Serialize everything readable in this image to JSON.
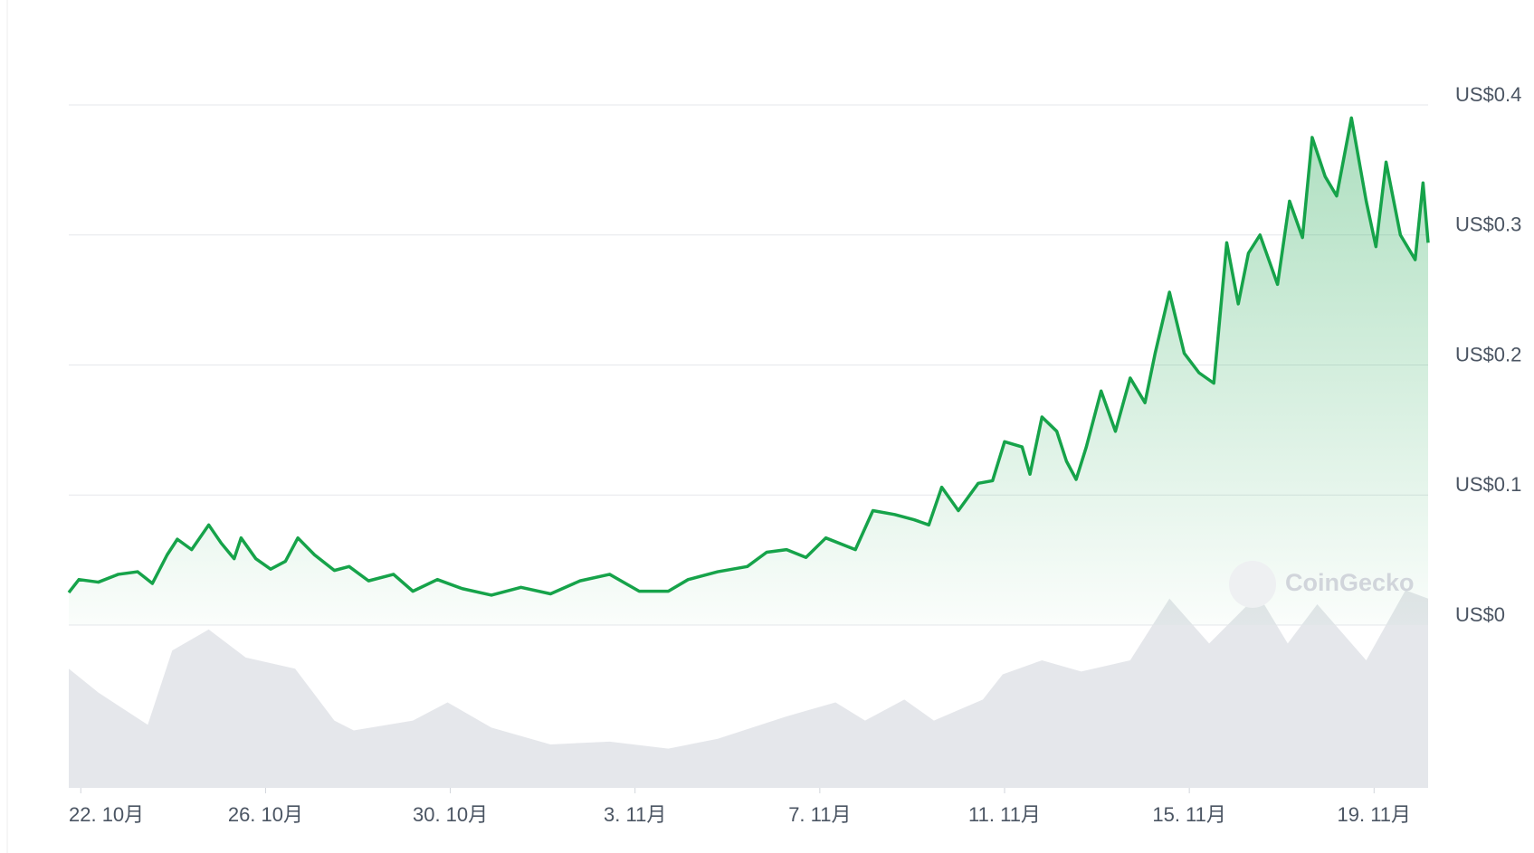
{
  "chart_data": {
    "type": "line",
    "watermark": "CoinGecko",
    "xlim": [
      21.74,
      51.17
    ],
    "xticks": [
      {
        "value": 22,
        "label": "22. 10月"
      },
      {
        "value": 26,
        "label": "26. 10月"
      },
      {
        "value": 30,
        "label": "30. 10月"
      },
      {
        "value": 34,
        "label": "3. 11月"
      },
      {
        "value": 38,
        "label": "7. 11月"
      },
      {
        "value": 42,
        "label": "11. 11月"
      },
      {
        "value": 46,
        "label": "15. 11月"
      },
      {
        "value": 50,
        "label": "19. 11月"
      }
    ],
    "ylim": [
      0,
      0.4
    ],
    "yticks": [
      {
        "value": 0,
        "label": "US$0"
      },
      {
        "value": 0.1,
        "label": "US$0.1"
      },
      {
        "value": 0.2,
        "label": "US$0.2"
      },
      {
        "value": 0.3,
        "label": "US$0.3"
      },
      {
        "value": 0.4,
        "label": "US$0.4"
      }
    ],
    "grid": true,
    "x": [
      21.74,
      21.96,
      22.38,
      22.81,
      23.23,
      23.55,
      23.87,
      24.09,
      24.4,
      24.77,
      25.04,
      25.32,
      25.47,
      25.79,
      26.11,
      26.43,
      26.7,
      27.06,
      27.49,
      27.81,
      28.23,
      28.77,
      29.19,
      29.72,
      30.26,
      30.89,
      31.53,
      32.17,
      32.81,
      33.45,
      34.09,
      34.72,
      35.15,
      35.79,
      36.43,
      36.85,
      37.28,
      37.7,
      38.13,
      38.77,
      39.15,
      39.62,
      40.04,
      40.36,
      40.64,
      41.0,
      41.43,
      41.74,
      42.0,
      42.38,
      42.55,
      42.81,
      43.13,
      43.34,
      43.55,
      43.77,
      44.09,
      44.4,
      44.72,
      45.04,
      45.26,
      45.57,
      45.89,
      46.21,
      46.53,
      46.81,
      47.06,
      47.28,
      47.53,
      47.91,
      48.17,
      48.45,
      48.66,
      48.94,
      49.19,
      49.51,
      49.83,
      50.04,
      50.26,
      50.57,
      50.89,
      51.06,
      51.17
    ],
    "series": [
      {
        "color": "#16a34a",
        "values": [
          0.025,
          0.035,
          0.033,
          0.039,
          0.041,
          0.032,
          0.054,
          0.066,
          0.058,
          0.077,
          0.063,
          0.051,
          0.067,
          0.051,
          0.043,
          0.049,
          0.067,
          0.054,
          0.042,
          0.045,
          0.034,
          0.039,
          0.026,
          0.035,
          0.028,
          0.023,
          0.029,
          0.024,
          0.034,
          0.039,
          0.026,
          0.026,
          0.035,
          0.041,
          0.045,
          0.056,
          0.058,
          0.052,
          0.067,
          0.058,
          0.088,
          0.085,
          0.081,
          0.077,
          0.106,
          0.088,
          0.109,
          0.111,
          0.141,
          0.137,
          0.116,
          0.16,
          0.149,
          0.126,
          0.112,
          0.137,
          0.18,
          0.149,
          0.19,
          0.171,
          0.209,
          0.256,
          0.209,
          0.194,
          0.186,
          0.294,
          0.247,
          0.286,
          0.3,
          0.262,
          0.326,
          0.298,
          0.375,
          0.345,
          0.33,
          0.39,
          0.326,
          0.291,
          0.356,
          0.3,
          0.281,
          0.34,
          0.294
        ]
      }
    ],
    "volume": {
      "color": "#e5e7eb",
      "vlim": [
        0,
        100
      ],
      "x": [
        21.74,
        22.38,
        23.45,
        23.98,
        24.77,
        25.57,
        26.64,
        27.49,
        27.91,
        29.19,
        29.94,
        30.89,
        32.17,
        33.45,
        34.72,
        35.79,
        37.28,
        38.34,
        38.98,
        39.83,
        40.47,
        41.53,
        41.96,
        42.81,
        43.66,
        44.72,
        45.57,
        46.43,
        47.49,
        48.13,
        48.77,
        49.83,
        50.68,
        51.17
      ],
      "values": [
        85,
        68,
        45,
        98,
        113,
        93,
        85,
        48,
        41,
        48,
        61,
        43,
        31,
        33,
        28,
        35,
        51,
        61,
        48,
        63,
        48,
        63,
        81,
        91,
        83,
        91,
        135,
        103,
        138,
        103,
        131,
        91,
        141,
        135
      ]
    }
  }
}
